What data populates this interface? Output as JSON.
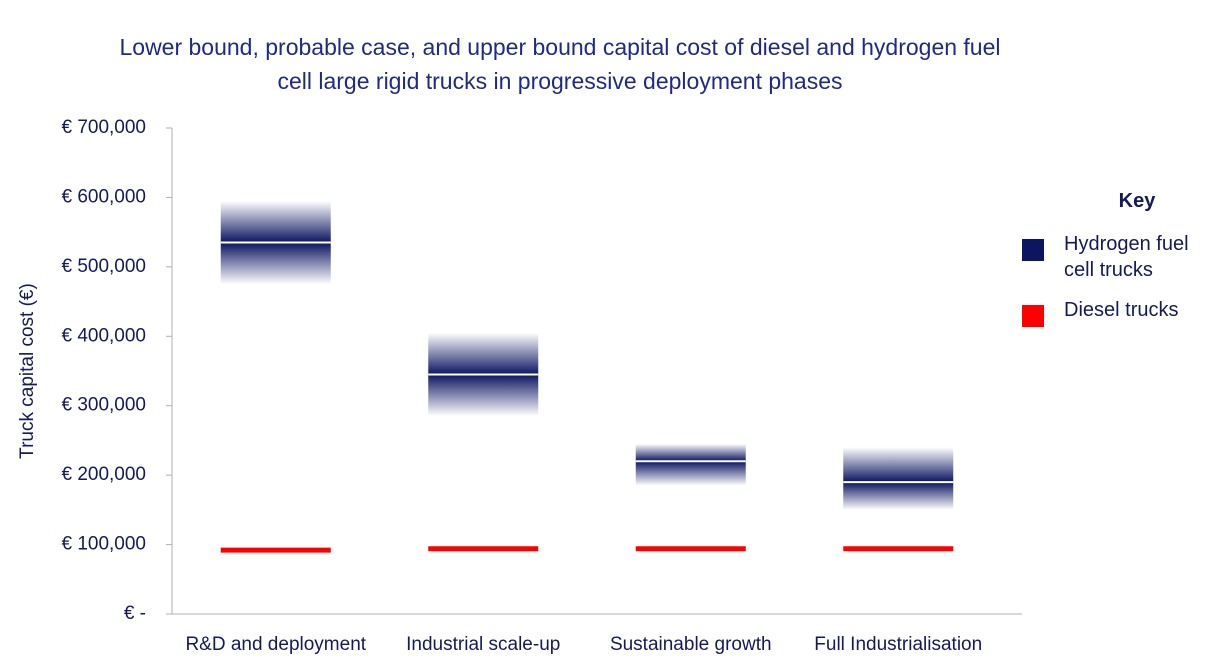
{
  "chart_data": {
    "type": "range",
    "title": "Lower bound, probable case, and upper bound capital cost of diesel and hydrogen fuel cell large rigid trucks in progressive deployment phases",
    "y_label": "Truck capital cost (€)",
    "categories": [
      "R&D and deployment",
      "Industrial scale-up",
      "Sustainable growth",
      "Full Industrialisation"
    ],
    "ylim": [
      0,
      700000
    ],
    "yticks": [
      {
        "value": 0,
        "label": "€ -"
      },
      {
        "value": 100000,
        "label": "€ 100,000"
      },
      {
        "value": 200000,
        "label": "€ 200,000"
      },
      {
        "value": 300000,
        "label": "€ 300,000"
      },
      {
        "value": 400000,
        "label": "€ 400,000"
      },
      {
        "value": 500000,
        "label": "€ 500,000"
      },
      {
        "value": 600000,
        "label": "€ 600,000"
      },
      {
        "value": 700000,
        "label": "€ 700,000"
      }
    ],
    "legend_title": "Key",
    "legend_position": "right",
    "series": [
      {
        "name": "Hydrogen fuel cell trucks",
        "color": "#0c1560",
        "low": [
          475000,
          285000,
          185000,
          150000
        ],
        "values": [
          535000,
          345000,
          220000,
          190000
        ],
        "high": [
          595000,
          405000,
          245000,
          240000
        ]
      },
      {
        "name": "Diesel trucks",
        "color": "#ff0000",
        "values": [
          92000,
          94000,
          94000,
          94000
        ]
      }
    ]
  }
}
